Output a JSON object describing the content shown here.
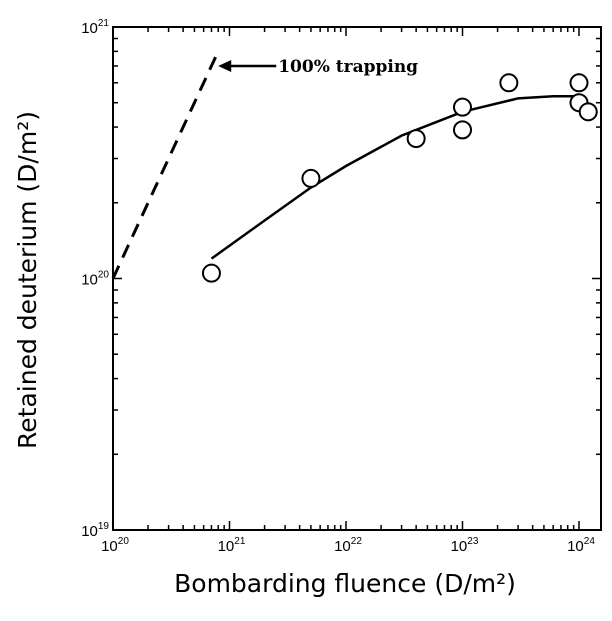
{
  "chart_data": {
    "type": "scatter",
    "xscale": "log",
    "yscale": "log",
    "xlim": [
      1e+20,
      1e+24
    ],
    "ylim": [
      1e+19,
      1e+21
    ],
    "xlabel": "Bombarding fluence (D/m²)",
    "ylabel": "Retained deuterium (D/m²)",
    "x_ticks": [
      {
        "value": 1e+20,
        "base": "10",
        "exp": "20"
      },
      {
        "value": 1e+21,
        "base": "10",
        "exp": "21"
      },
      {
        "value": 1e+22,
        "base": "10",
        "exp": "22"
      },
      {
        "value": 1e+23,
        "base": "10",
        "exp": "23"
      },
      {
        "value": 1e+24,
        "base": "10",
        "exp": "24"
      }
    ],
    "y_ticks": [
      {
        "value": 1e+19,
        "base": "10",
        "exp": "19"
      },
      {
        "value": 1e+20,
        "base": "10",
        "exp": "20"
      },
      {
        "value": 1e+21,
        "base": "10",
        "exp": "21"
      }
    ],
    "grid": false,
    "series": [
      {
        "marker": "open-circle",
        "x": [
          7e+20,
          5e+21,
          4e+22,
          1e+23,
          1e+23,
          2.5e+23,
          1e+24,
          1e+24,
          1.2e+24
        ],
        "y": [
          1.05e+20,
          2.5e+20,
          3.6e+20,
          3.9e+20,
          4.8e+20,
          6e+20,
          6e+20,
          5e+20,
          4.6e+20
        ]
      },
      {
        "style": "solid-fit",
        "x": [
          7e+20,
          2e+21,
          5e+21,
          1e+22,
          3e+22,
          1e+23,
          3e+23,
          6e+23,
          1e+24
        ],
        "y": [
          1.2e+20,
          1.7e+20,
          2.3e+20,
          2.8e+20,
          3.7e+20,
          4.6e+20,
          5.2e+20,
          5.3e+20,
          5.3e+20
        ]
      },
      {
        "style": "dashed",
        "x": [
          1e+20,
          8e+20
        ],
        "y": [
          1e+20,
          8e+20
        ]
      }
    ],
    "annotations": [
      {
        "text": "100% trapping",
        "x": 8e+20,
        "y": 7e+20
      }
    ]
  }
}
